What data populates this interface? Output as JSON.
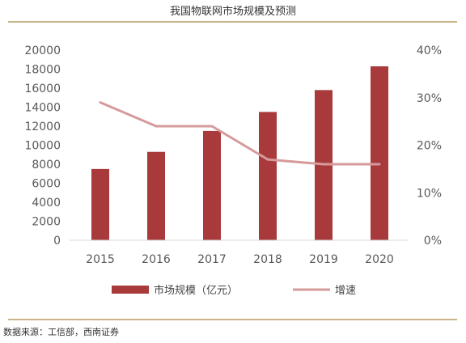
{
  "title": "我国物联网市场规模及预测",
  "source": "数据来源：工信部，西南证券",
  "chart_data": {
    "type": "bar",
    "categories": [
      "2015",
      "2016",
      "2017",
      "2018",
      "2019",
      "2020"
    ],
    "series": [
      {
        "name": "市场规模（亿元）",
        "type": "bar",
        "axis": "left",
        "values": [
          7500,
          9300,
          11500,
          13500,
          15800,
          18300
        ],
        "color": "#a83a3c"
      },
      {
        "name": "增速",
        "type": "line",
        "axis": "right",
        "values": [
          29,
          24,
          24,
          17,
          16,
          16
        ],
        "color": "#d69a9b"
      }
    ],
    "y_left": {
      "ylim": [
        0,
        20000
      ],
      "ticks": [
        "0",
        "2000",
        "4000",
        "6000",
        "8000",
        "10000",
        "12000",
        "14000",
        "16000",
        "18000",
        "20000"
      ]
    },
    "y_right": {
      "ylim": [
        0,
        40
      ],
      "ticks": [
        "0%",
        "10%",
        "20%",
        "30%",
        "40%"
      ]
    },
    "grid": false,
    "legend": "bottom"
  }
}
